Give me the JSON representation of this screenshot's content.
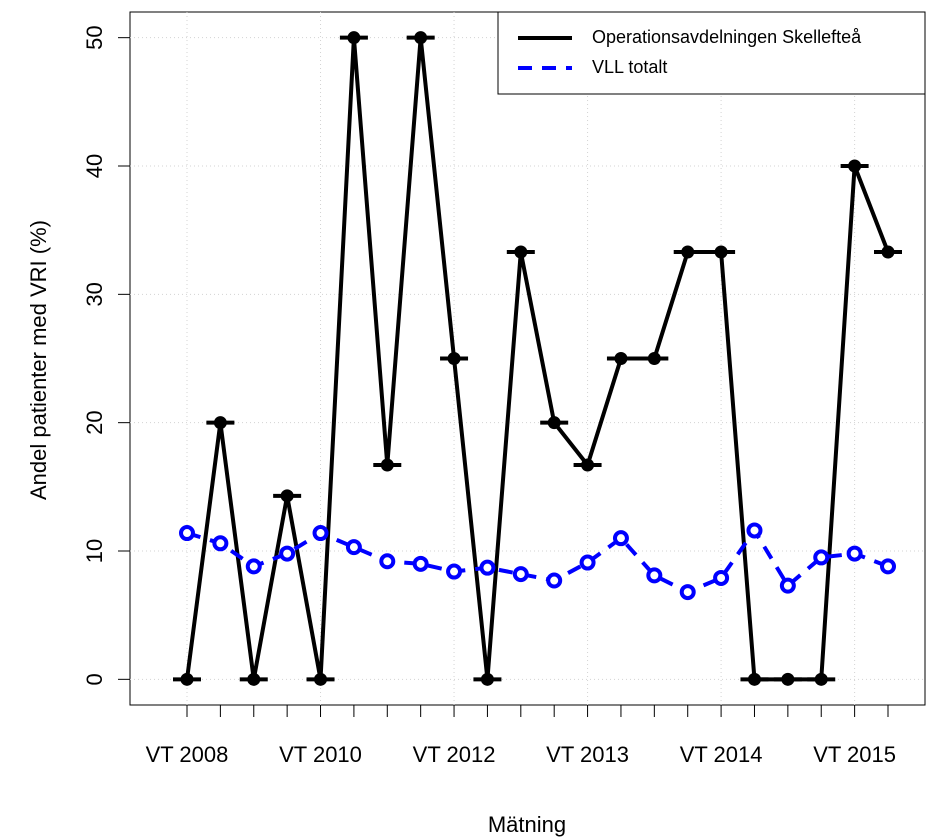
{
  "chart_data": {
    "type": "line",
    "x_label": "Mätning",
    "y_label": "Andel patienter med VRI (%)",
    "categories": [
      "VT 2008",
      null,
      null,
      null,
      "VT 2010",
      null,
      null,
      null,
      "VT 2012",
      null,
      null,
      null,
      "VT 2013",
      null,
      null,
      null,
      "VT 2014",
      null,
      null,
      null,
      "VT 2015",
      null
    ],
    "series": [
      {
        "name": "Operationsavdelningen Skellefteå",
        "color": "#000000",
        "line_style": "solid",
        "marker": "filled",
        "values": [
          0,
          20,
          0,
          14.3,
          0,
          50,
          16.7,
          50,
          25,
          0,
          33.3,
          20,
          16.7,
          25,
          25,
          33.3,
          33.3,
          0,
          0,
          0,
          40,
          33.3
        ]
      },
      {
        "name": "VLL totalt",
        "color": "#0000ff",
        "line_style": "dashed",
        "marker": "open",
        "values": [
          11.4,
          10.6,
          8.8,
          9.8,
          11.4,
          10.3,
          9.2,
          9.0,
          8.4,
          8.7,
          8.2,
          7.7,
          9.1,
          11.0,
          8.1,
          6.8,
          7.9,
          11.6,
          7.3,
          9.5,
          9.8,
          8.8
        ]
      }
    ],
    "ylim": [
      -2,
      52
    ],
    "yticks": [
      0,
      10,
      20,
      30,
      40,
      50
    ],
    "grid": true,
    "legend": "topright"
  }
}
